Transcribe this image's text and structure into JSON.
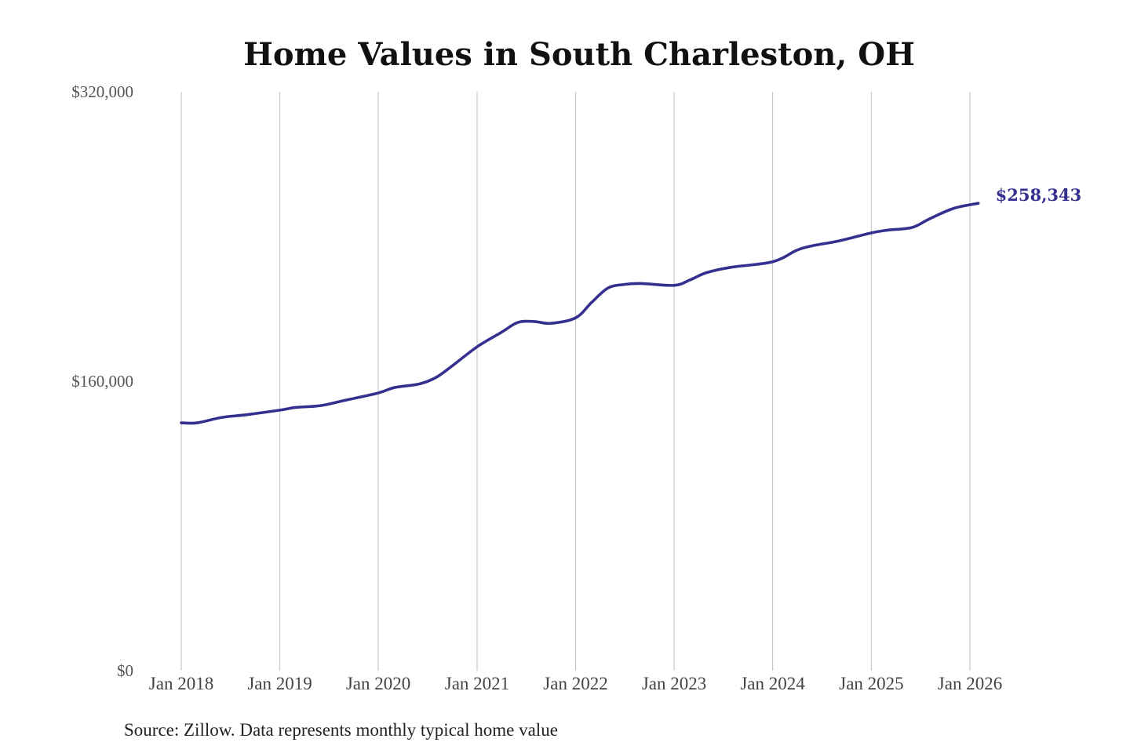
{
  "colors": {
    "series": "#35308f",
    "grid": "#c8c8c8"
  },
  "source_note": "Source: Zillow. Data represents monthly typical home value",
  "chart_data": {
    "type": "line",
    "title": "Home Values in South Charleston, OH",
    "xlabel": "",
    "ylabel": "",
    "ylim": [
      0,
      320000
    ],
    "yticks": [
      {
        "value": 0,
        "label": "$0"
      },
      {
        "value": 160000,
        "label": "$160,000"
      },
      {
        "value": 320000,
        "label": "$320,000"
      }
    ],
    "xticks": [
      {
        "date": "2018-01",
        "label": "Jan 2018"
      },
      {
        "date": "2019-01",
        "label": "Jan 2019"
      },
      {
        "date": "2020-01",
        "label": "Jan 2020"
      },
      {
        "date": "2021-01",
        "label": "Jan 2021"
      },
      {
        "date": "2022-01",
        "label": "Jan 2022"
      },
      {
        "date": "2023-01",
        "label": "Jan 2023"
      },
      {
        "date": "2024-01",
        "label": "Jan 2024"
      },
      {
        "date": "2025-01",
        "label": "Jan 2025"
      },
      {
        "date": "2026-01",
        "label": "Jan 2026"
      }
    ],
    "grid": "vertical",
    "series": [
      {
        "end_label": "$258,343",
        "points": [
          {
            "x": "2018-01",
            "y": 137000
          },
          {
            "x": "2018-03",
            "y": 137000
          },
          {
            "x": "2018-06",
            "y": 140000
          },
          {
            "x": "2018-09",
            "y": 141500
          },
          {
            "x": "2019-01",
            "y": 144000
          },
          {
            "x": "2019-03",
            "y": 145500
          },
          {
            "x": "2019-06",
            "y": 146500
          },
          {
            "x": "2019-09",
            "y": 149500
          },
          {
            "x": "2020-01",
            "y": 153500
          },
          {
            "x": "2020-03",
            "y": 156500
          },
          {
            "x": "2020-06",
            "y": 158500
          },
          {
            "x": "2020-08",
            "y": 162000
          },
          {
            "x": "2020-10",
            "y": 168500
          },
          {
            "x": "2021-01",
            "y": 179000
          },
          {
            "x": "2021-04",
            "y": 187000
          },
          {
            "x": "2021-06",
            "y": 192500
          },
          {
            "x": "2021-08",
            "y": 193000
          },
          {
            "x": "2021-10",
            "y": 192000
          },
          {
            "x": "2022-01",
            "y": 195000
          },
          {
            "x": "2022-03",
            "y": 203500
          },
          {
            "x": "2022-05",
            "y": 211500
          },
          {
            "x": "2022-07",
            "y": 213500
          },
          {
            "x": "2022-09",
            "y": 214000
          },
          {
            "x": "2023-01",
            "y": 213000
          },
          {
            "x": "2023-03",
            "y": 216000
          },
          {
            "x": "2023-05",
            "y": 220000
          },
          {
            "x": "2023-08",
            "y": 223000
          },
          {
            "x": "2024-01",
            "y": 226000
          },
          {
            "x": "2024-04",
            "y": 232500
          },
          {
            "x": "2024-06",
            "y": 235000
          },
          {
            "x": "2024-09",
            "y": 237500
          },
          {
            "x": "2025-01",
            "y": 242000
          },
          {
            "x": "2025-03",
            "y": 243500
          },
          {
            "x": "2025-06",
            "y": 245000
          },
          {
            "x": "2025-08",
            "y": 249500
          },
          {
            "x": "2025-11",
            "y": 255500
          },
          {
            "x": "2026-02",
            "y": 258343
          }
        ]
      }
    ]
  }
}
